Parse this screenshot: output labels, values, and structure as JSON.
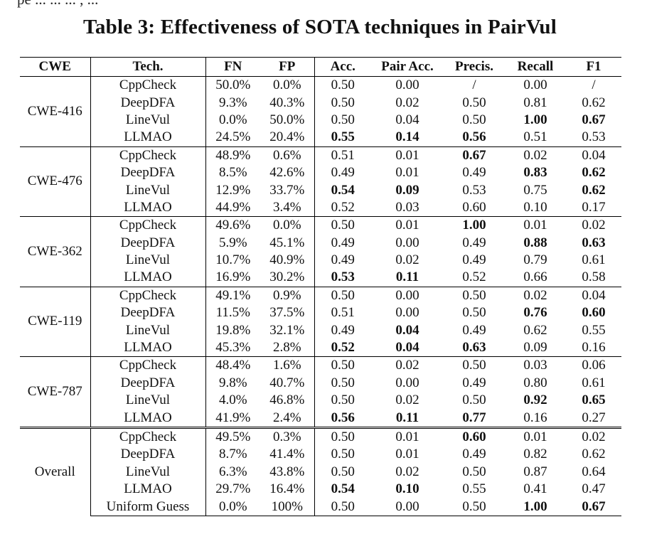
{
  "top_cutoff_text": "pe ... ... ... , ...",
  "caption": "Table 3: Effectiveness of SOTA techniques in PairVul",
  "headers": [
    "CWE",
    "Tech.",
    "FN",
    "FP",
    "Acc.",
    "Pair Acc.",
    "Precis.",
    "Recall",
    "F1"
  ],
  "groups": [
    {
      "cwe": "CWE-416",
      "rows": [
        {
          "tech": "CppCheck",
          "fn": "50.0%",
          "fp": "0.0%",
          "acc": "0.50",
          "pair_acc": "0.00",
          "precis": "/",
          "recall": "0.00",
          "f1": "/",
          "bold": []
        },
        {
          "tech": "DeepDFA",
          "fn": "9.3%",
          "fp": "40.3%",
          "acc": "0.50",
          "pair_acc": "0.02",
          "precis": "0.50",
          "recall": "0.81",
          "f1": "0.62",
          "bold": []
        },
        {
          "tech": "LineVul",
          "fn": "0.0%",
          "fp": "50.0%",
          "acc": "0.50",
          "pair_acc": "0.04",
          "precis": "0.50",
          "recall": "1.00",
          "f1": "0.67",
          "bold": [
            "recall",
            "f1"
          ]
        },
        {
          "tech": "LLMAO",
          "fn": "24.5%",
          "fp": "20.4%",
          "acc": "0.55",
          "pair_acc": "0.14",
          "precis": "0.56",
          "recall": "0.51",
          "f1": "0.53",
          "bold": [
            "acc",
            "pair_acc",
            "precis"
          ]
        }
      ]
    },
    {
      "cwe": "CWE-476",
      "rows": [
        {
          "tech": "CppCheck",
          "fn": "48.9%",
          "fp": "0.6%",
          "acc": "0.51",
          "pair_acc": "0.01",
          "precis": "0.67",
          "recall": "0.02",
          "f1": "0.04",
          "bold": [
            "precis"
          ]
        },
        {
          "tech": "DeepDFA",
          "fn": "8.5%",
          "fp": "42.6%",
          "acc": "0.49",
          "pair_acc": "0.01",
          "precis": "0.49",
          "recall": "0.83",
          "f1": "0.62",
          "bold": [
            "recall",
            "f1"
          ]
        },
        {
          "tech": "LineVul",
          "fn": "12.9%",
          "fp": "33.7%",
          "acc": "0.54",
          "pair_acc": "0.09",
          "precis": "0.53",
          "recall": "0.75",
          "f1": "0.62",
          "bold": [
            "acc",
            "pair_acc",
            "f1"
          ]
        },
        {
          "tech": "LLMAO",
          "fn": "44.9%",
          "fp": "3.4%",
          "acc": "0.52",
          "pair_acc": "0.03",
          "precis": "0.60",
          "recall": "0.10",
          "f1": "0.17",
          "bold": []
        }
      ]
    },
    {
      "cwe": "CWE-362",
      "rows": [
        {
          "tech": "CppCheck",
          "fn": "49.6%",
          "fp": "0.0%",
          "acc": "0.50",
          "pair_acc": "0.01",
          "precis": "1.00",
          "recall": "0.01",
          "f1": "0.02",
          "bold": [
            "precis"
          ]
        },
        {
          "tech": "DeepDFA",
          "fn": "5.9%",
          "fp": "45.1%",
          "acc": "0.49",
          "pair_acc": "0.00",
          "precis": "0.49",
          "recall": "0.88",
          "f1": "0.63",
          "bold": [
            "recall",
            "f1"
          ]
        },
        {
          "tech": "LineVul",
          "fn": "10.7%",
          "fp": "40.9%",
          "acc": "0.49",
          "pair_acc": "0.02",
          "precis": "0.49",
          "recall": "0.79",
          "f1": "0.61",
          "bold": []
        },
        {
          "tech": "LLMAO",
          "fn": "16.9%",
          "fp": "30.2%",
          "acc": "0.53",
          "pair_acc": "0.11",
          "precis": "0.52",
          "recall": "0.66",
          "f1": "0.58",
          "bold": [
            "acc",
            "pair_acc"
          ]
        }
      ]
    },
    {
      "cwe": "CWE-119",
      "rows": [
        {
          "tech": "CppCheck",
          "fn": "49.1%",
          "fp": "0.9%",
          "acc": "0.50",
          "pair_acc": "0.00",
          "precis": "0.50",
          "recall": "0.02",
          "f1": "0.04",
          "bold": []
        },
        {
          "tech": "DeepDFA",
          "fn": "11.5%",
          "fp": "37.5%",
          "acc": "0.51",
          "pair_acc": "0.00",
          "precis": "0.50",
          "recall": "0.76",
          "f1": "0.60",
          "bold": [
            "recall",
            "f1"
          ]
        },
        {
          "tech": "LineVul",
          "fn": "19.8%",
          "fp": "32.1%",
          "acc": "0.49",
          "pair_acc": "0.04",
          "precis": "0.49",
          "recall": "0.62",
          "f1": "0.55",
          "bold": [
            "pair_acc"
          ]
        },
        {
          "tech": "LLMAO",
          "fn": "45.3%",
          "fp": "2.8%",
          "acc": "0.52",
          "pair_acc": "0.04",
          "precis": "0.63",
          "recall": "0.09",
          "f1": "0.16",
          "bold": [
            "acc",
            "pair_acc",
            "precis"
          ]
        }
      ]
    },
    {
      "cwe": "CWE-787",
      "rows": [
        {
          "tech": "CppCheck",
          "fn": "48.4%",
          "fp": "1.6%",
          "acc": "0.50",
          "pair_acc": "0.02",
          "precis": "0.50",
          "recall": "0.03",
          "f1": "0.06",
          "bold": []
        },
        {
          "tech": "DeepDFA",
          "fn": "9.8%",
          "fp": "40.7%",
          "acc": "0.50",
          "pair_acc": "0.00",
          "precis": "0.49",
          "recall": "0.80",
          "f1": "0.61",
          "bold": []
        },
        {
          "tech": "LineVul",
          "fn": "4.0%",
          "fp": "46.8%",
          "acc": "0.50",
          "pair_acc": "0.02",
          "precis": "0.50",
          "recall": "0.92",
          "f1": "0.65",
          "bold": [
            "recall",
            "f1"
          ]
        },
        {
          "tech": "LLMAO",
          "fn": "41.9%",
          "fp": "2.4%",
          "acc": "0.56",
          "pair_acc": "0.11",
          "precis": "0.77",
          "recall": "0.16",
          "f1": "0.27",
          "bold": [
            "acc",
            "pair_acc",
            "precis"
          ]
        }
      ]
    },
    {
      "cwe": "Overall",
      "rows": [
        {
          "tech": "CppCheck",
          "fn": "49.5%",
          "fp": "0.3%",
          "acc": "0.50",
          "pair_acc": "0.01",
          "precis": "0.60",
          "recall": "0.01",
          "f1": "0.02",
          "bold": [
            "precis"
          ]
        },
        {
          "tech": "DeepDFA",
          "fn": "8.7%",
          "fp": "41.4%",
          "acc": "0.50",
          "pair_acc": "0.01",
          "precis": "0.49",
          "recall": "0.82",
          "f1": "0.62",
          "bold": []
        },
        {
          "tech": "LineVul",
          "fn": "6.3%",
          "fp": "43.8%",
          "acc": "0.50",
          "pair_acc": "0.02",
          "precis": "0.50",
          "recall": "0.87",
          "f1": "0.64",
          "bold": []
        },
        {
          "tech": "LLMAO",
          "fn": "29.7%",
          "fp": "16.4%",
          "acc": "0.54",
          "pair_acc": "0.10",
          "precis": "0.55",
          "recall": "0.41",
          "f1": "0.47",
          "bold": [
            "acc",
            "pair_acc"
          ]
        },
        {
          "tech": "Uniform Guess",
          "fn": "0.0%",
          "fp": "100%",
          "acc": "0.50",
          "pair_acc": "0.00",
          "precis": "0.50",
          "recall": "1.00",
          "f1": "0.67",
          "bold": [
            "recall",
            "f1"
          ]
        }
      ]
    }
  ]
}
